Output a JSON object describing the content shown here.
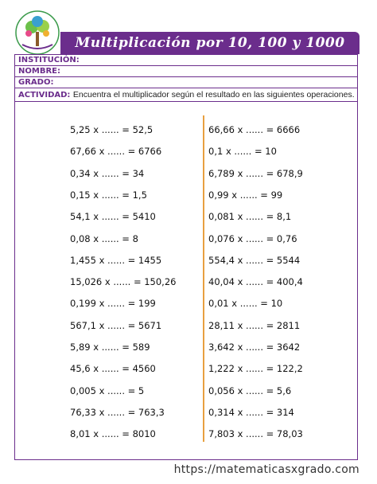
{
  "header": {
    "title": "Multiplicación por 10, 100 y 1000"
  },
  "fields": [
    "INSTITUCIÓN:",
    "NOMBRE:",
    "GRADO:"
  ],
  "activity": {
    "label": "ACTIVIDAD:",
    "text": "Encuentra el multiplicador según el resultado en las siguientes operaciones."
  },
  "exercises": {
    "left": [
      "5,25 x ...... = 52,5",
      "67,66 x ...... = 6766",
      "0,34 x ...... = 34",
      "0,15 x ...... = 1,5",
      "54,1 x ...... = 5410",
      "0,08 x ...... = 8",
      "1,455 x ...... = 1455",
      "15,026 x ...... = 150,26",
      "0,199 x ...... = 199",
      "567,1 x ...... = 5671",
      "5,89 x ...... = 589",
      "45,6 x ...... = 4560",
      "0,005 x ...... = 5",
      "76,33 x ...... = 763,3",
      "8,01 x ...... = 8010"
    ],
    "right": [
      "66,66 x ...... = 6666",
      "0,1 x ...... = 10",
      "6,789 x ...... = 678,9",
      "0,99 x ...... = 99",
      "0,081 x ...... = 8,1",
      "0,076 x ...... = 0,76",
      "554,4 x ...... = 5544",
      "40,04 x ...... = 400,4",
      "0,01 x ...... = 10",
      "28,11 x ...... = 2811",
      "3,642 x ...... = 3642",
      "1,222 x ...... = 122,2",
      "0,056 x ...... = 5,6",
      "0,314 x ...... = 314",
      "7,803 x ...... = 78,03"
    ]
  },
  "footer": {
    "url": "https://matematicasxgrado.com"
  }
}
